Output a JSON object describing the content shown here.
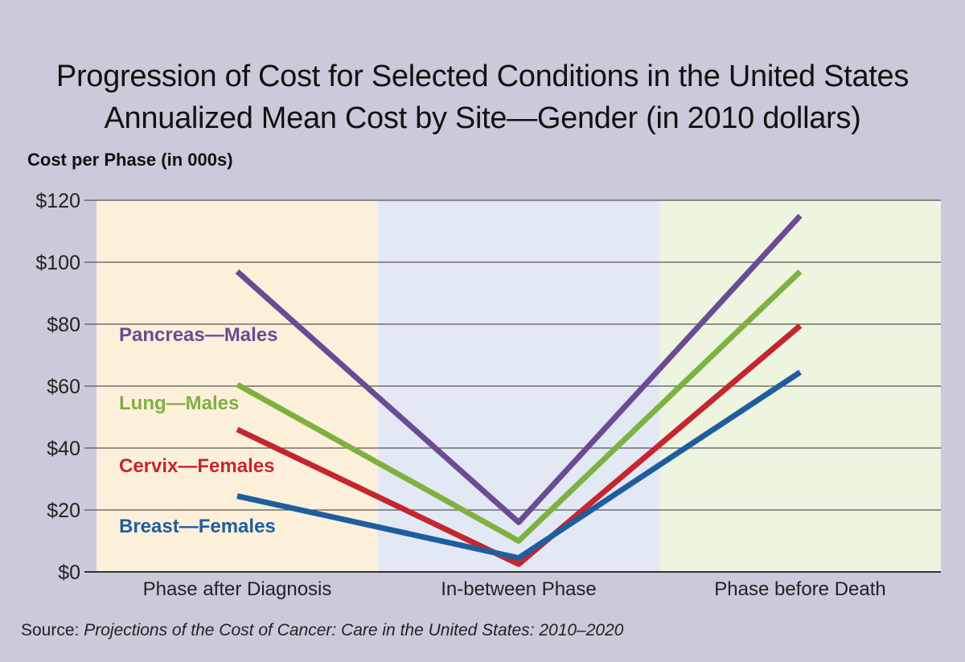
{
  "chart_data": {
    "type": "line",
    "title": "Progression of Cost for Selected  Conditions in the United States",
    "subtitle": "Annualized Mean Cost by Site—Gender (in 2010 dollars)",
    "ylabel": "Cost per Phase  (in 000s)",
    "xlabel": "",
    "categories": [
      "Phase after Diagnosis",
      "In-between Phase",
      "Phase before Death"
    ],
    "ylim": [
      0,
      120
    ],
    "yticks": [
      0,
      20,
      40,
      60,
      80,
      100,
      120
    ],
    "ytick_labels": [
      "$0",
      "$20",
      "$40",
      "$60",
      "$80",
      "$100",
      "$120"
    ],
    "grid": true,
    "legend": "inline-left",
    "series": [
      {
        "name": "Pancreas—Males",
        "values": [
          97,
          16,
          115
        ],
        "color": "#6a4c93"
      },
      {
        "name": "Lung—Males",
        "values": [
          60.5,
          10,
          97
        ],
        "color": "#7fb141"
      },
      {
        "name": "Cervix—Females",
        "values": [
          46,
          2.5,
          79.5
        ],
        "color": "#c4262e"
      },
      {
        "name": "Breast—Females",
        "values": [
          24.5,
          4.5,
          64.5
        ],
        "color": "#1f5e9e"
      }
    ],
    "phase_band_colors": [
      "#fdf0db",
      "#e3e8f5",
      "#edf4df"
    ],
    "source_prefix": "Source: ",
    "source_title": "Projections of the Cost of Cancer: Care in the United States: 2010–2020"
  }
}
